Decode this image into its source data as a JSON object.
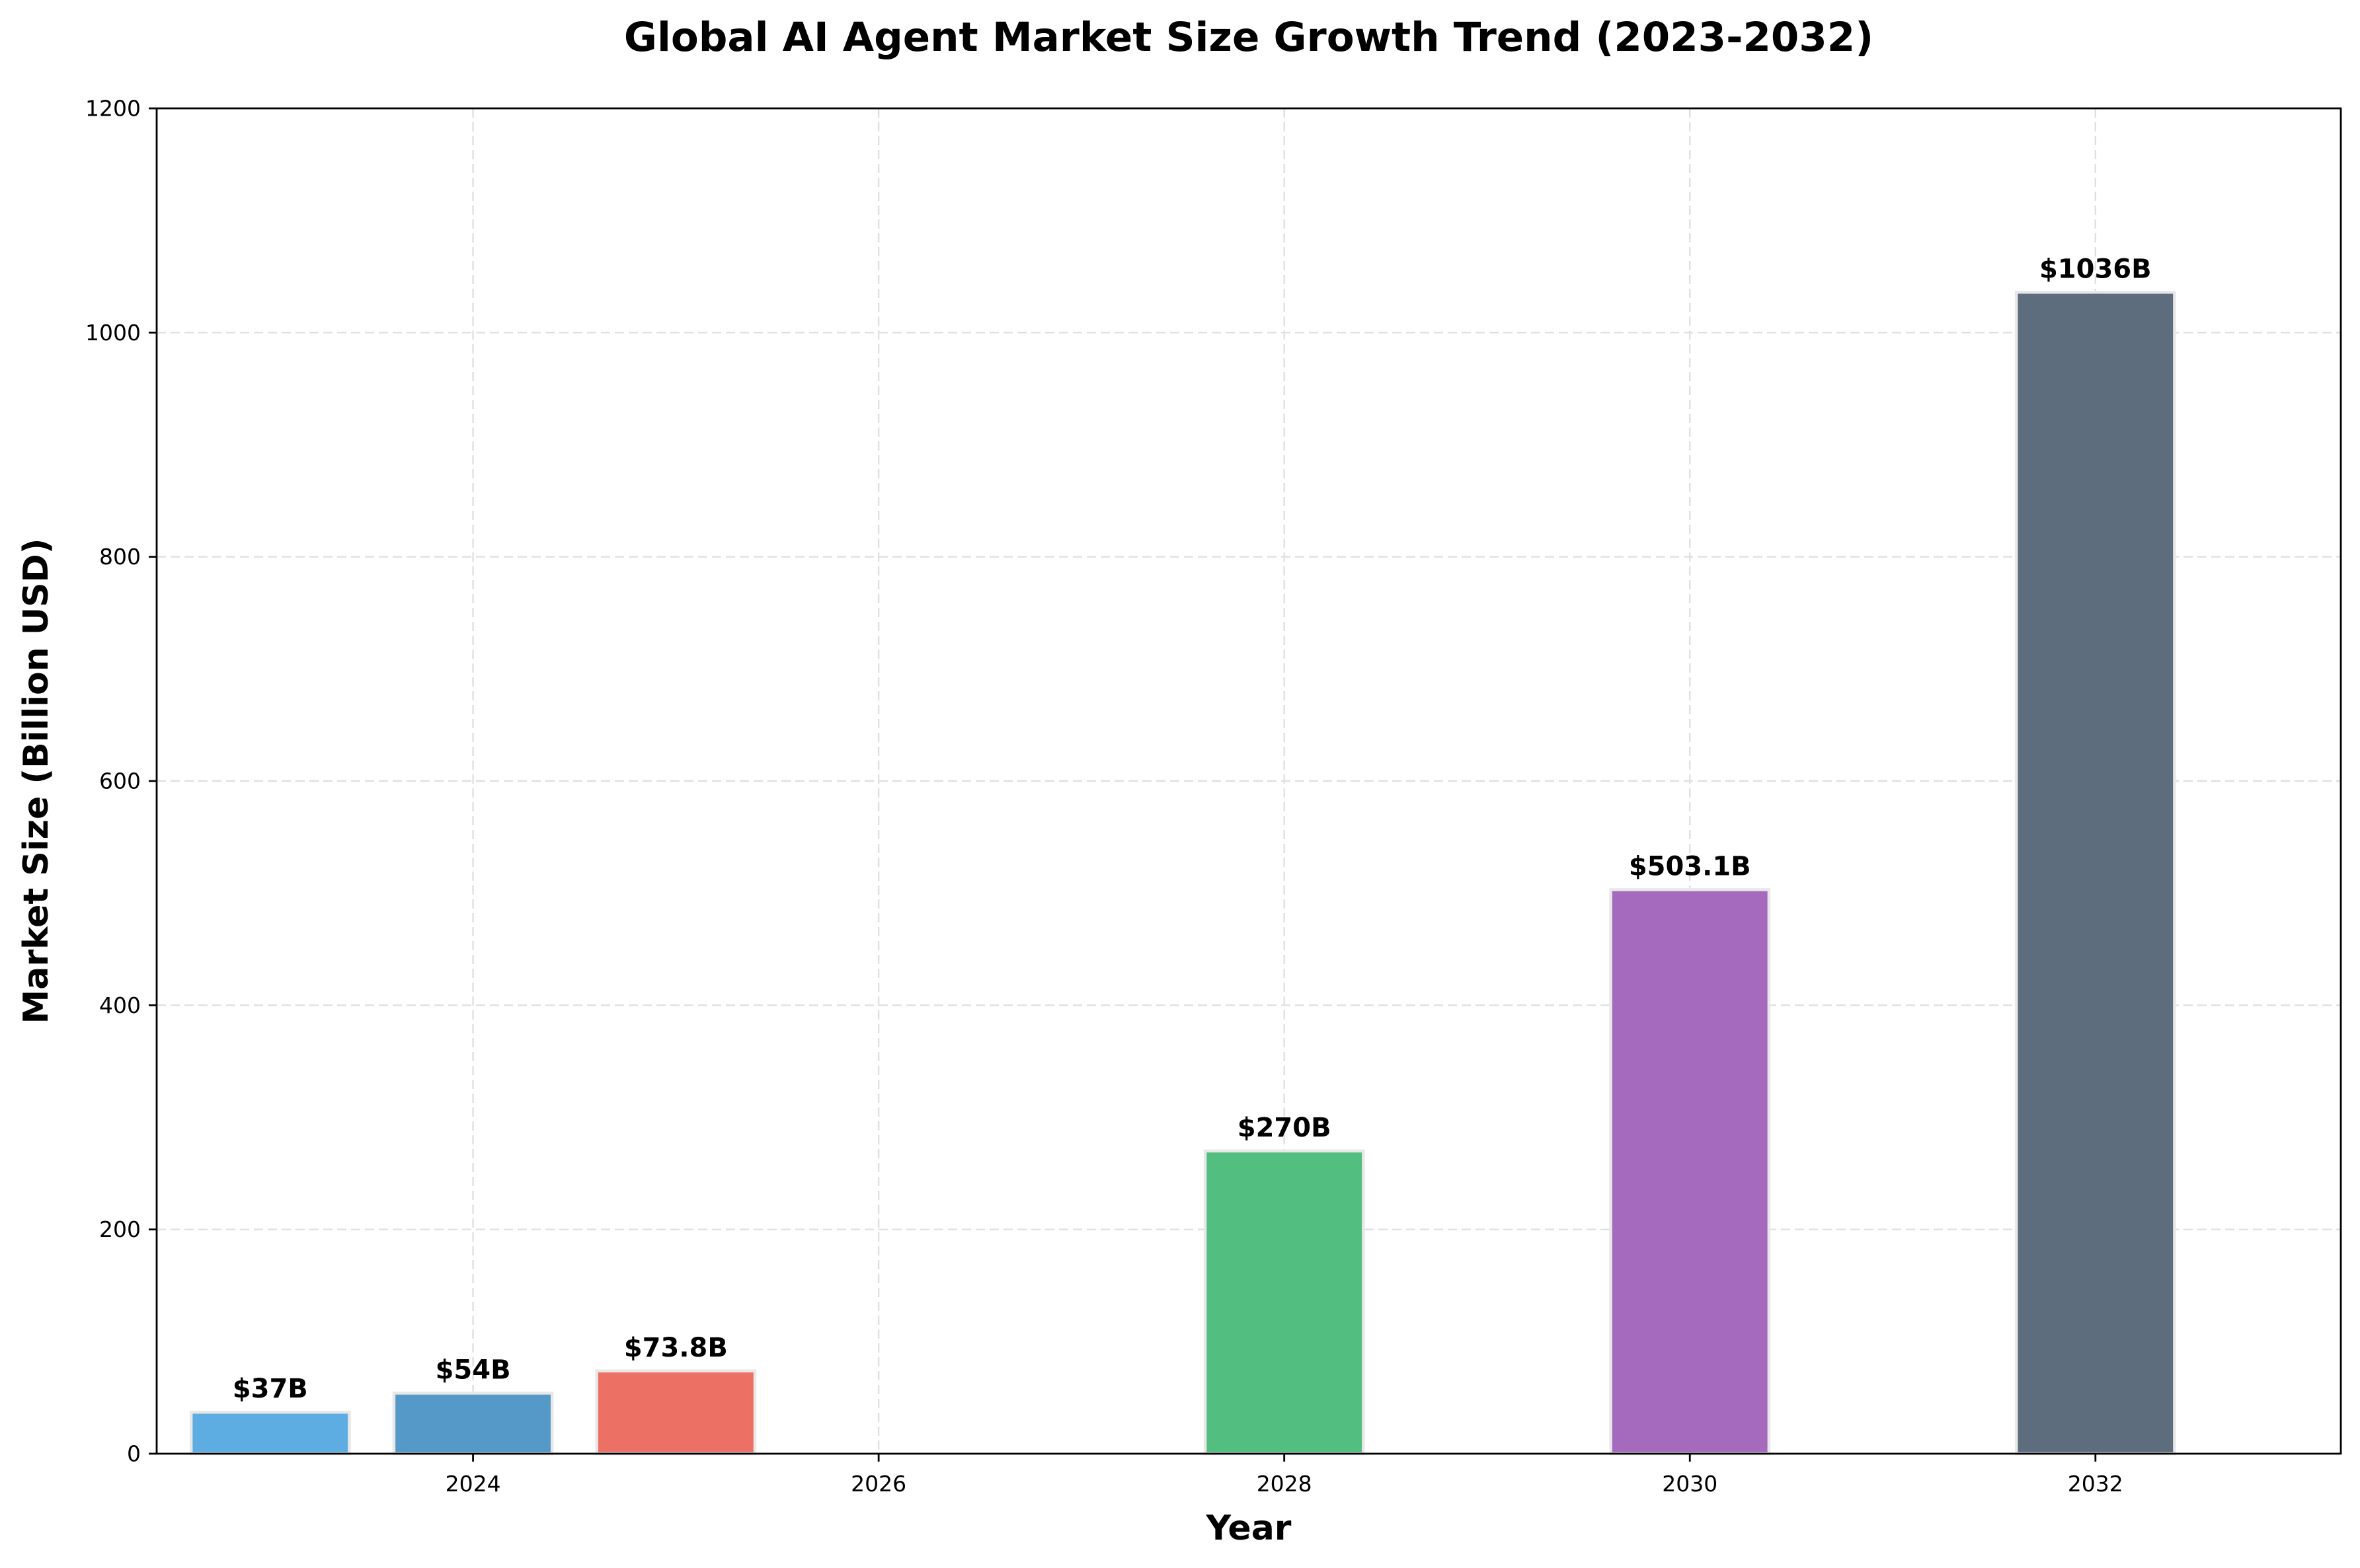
{
  "chart_data": {
    "type": "bar",
    "title": "Global AI Agent Market Size Growth Trend (2023-2032)",
    "xlabel": "Year",
    "ylabel": "Market Size (Billion USD)",
    "x": [
      2023,
      2024,
      2025,
      2028,
      2030,
      2032
    ],
    "values": [
      37,
      54,
      73.8,
      270,
      503.1,
      1036
    ],
    "data_labels": [
      "$37B",
      "$54B",
      "$73.8B",
      "$270B",
      "$503.1B",
      "$1036B"
    ],
    "colors": [
      "#5dade2",
      "#5499c7",
      "#ec7063",
      "#52be80",
      "#a569bd",
      "#5d6d7e"
    ],
    "bar_edge_color": "#e8e8e8",
    "bar_width_years": 0.78,
    "xlim": [
      2022.44,
      2033.21
    ],
    "ylim": [
      0,
      1200
    ],
    "xticks": [
      2024,
      2026,
      2028,
      2030,
      2032
    ],
    "yticks": [
      0,
      200,
      400,
      600,
      800,
      1000,
      1200
    ],
    "grid": true,
    "legend": "none"
  }
}
